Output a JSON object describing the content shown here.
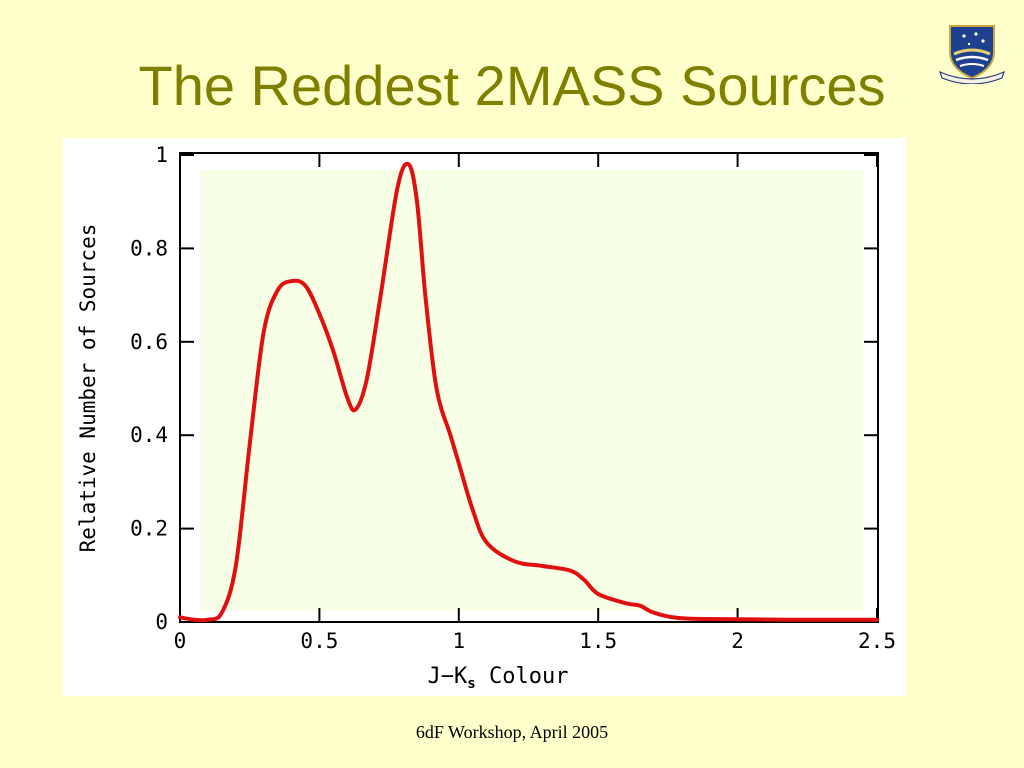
{
  "slide": {
    "title": "The Reddest 2MASS Sources",
    "footer": "6dF Workshop, April 2005",
    "logo_icon": "university-crest-icon"
  },
  "colors": {
    "background": "#ffffcc",
    "title": "#808000",
    "curve": "#e01010",
    "plot_area": "#f7ffe6"
  },
  "chart_data": {
    "type": "line",
    "xlabel_main": "J−K",
    "xlabel_sub": "s",
    "xlabel_tail": " Colour",
    "ylabel": "Relative Number of Sources",
    "xlim": [
      0,
      2.5
    ],
    "ylim": [
      0,
      1
    ],
    "xticks": [
      0,
      0.5,
      1,
      1.5,
      2,
      2.5
    ],
    "xtick_labels": [
      "0",
      "0.5",
      "1",
      "1.5",
      "2",
      "2.5"
    ],
    "yticks": [
      0,
      0.2,
      0.4,
      0.6,
      0.8,
      1
    ],
    "ytick_labels": [
      "0",
      "0.2",
      "0.4",
      "0.6",
      "0.8",
      "1"
    ],
    "grid": false,
    "series": [
      {
        "color": "#e01010",
        "x": [
          0,
          0.05,
          0.1,
          0.15,
          0.2,
          0.25,
          0.3,
          0.35,
          0.4,
          0.45,
          0.5,
          0.55,
          0.6,
          0.63,
          0.67,
          0.72,
          0.78,
          0.82,
          0.85,
          0.88,
          0.92,
          0.97,
          1.0,
          1.05,
          1.1,
          1.2,
          1.3,
          1.4,
          1.45,
          1.5,
          1.6,
          1.65,
          1.7,
          1.8,
          2.0,
          2.2,
          2.5
        ],
        "y": [
          0.01,
          0.005,
          0.005,
          0.02,
          0.12,
          0.38,
          0.62,
          0.71,
          0.73,
          0.72,
          0.66,
          0.58,
          0.48,
          0.455,
          0.52,
          0.7,
          0.93,
          0.98,
          0.9,
          0.7,
          0.5,
          0.4,
          0.34,
          0.24,
          0.17,
          0.13,
          0.12,
          0.11,
          0.09,
          0.06,
          0.04,
          0.035,
          0.02,
          0.008,
          0.006,
          0.005,
          0.005
        ]
      }
    ]
  }
}
